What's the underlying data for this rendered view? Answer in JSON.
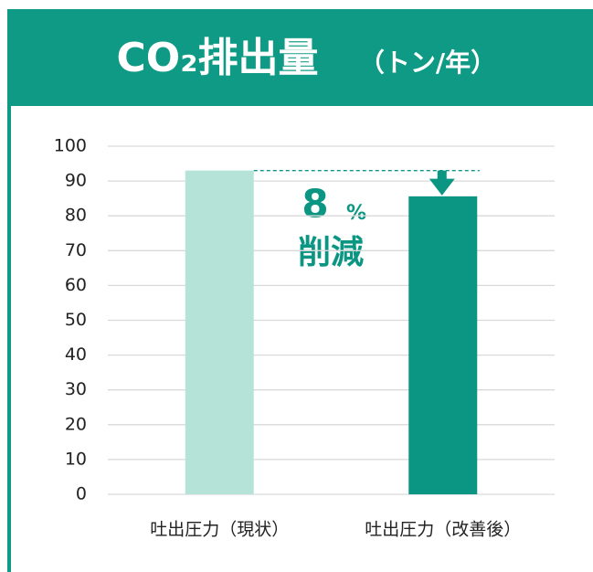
{
  "chart_data": {
    "type": "bar",
    "title": "CO₂排出量",
    "unit": "（トン/年）",
    "categories": [
      "吐出圧力（現状）",
      "吐出圧力（改善後）"
    ],
    "values": [
      93,
      85.6
    ],
    "colors": [
      "#b5e3d8",
      "#0b9683"
    ],
    "ylim": [
      0,
      100
    ],
    "yticks": [
      0,
      10,
      20,
      30,
      40,
      50,
      60,
      70,
      80,
      90,
      100
    ],
    "grid": true,
    "annotation": {
      "number": 8,
      "unit": "%",
      "text": "削減"
    }
  }
}
